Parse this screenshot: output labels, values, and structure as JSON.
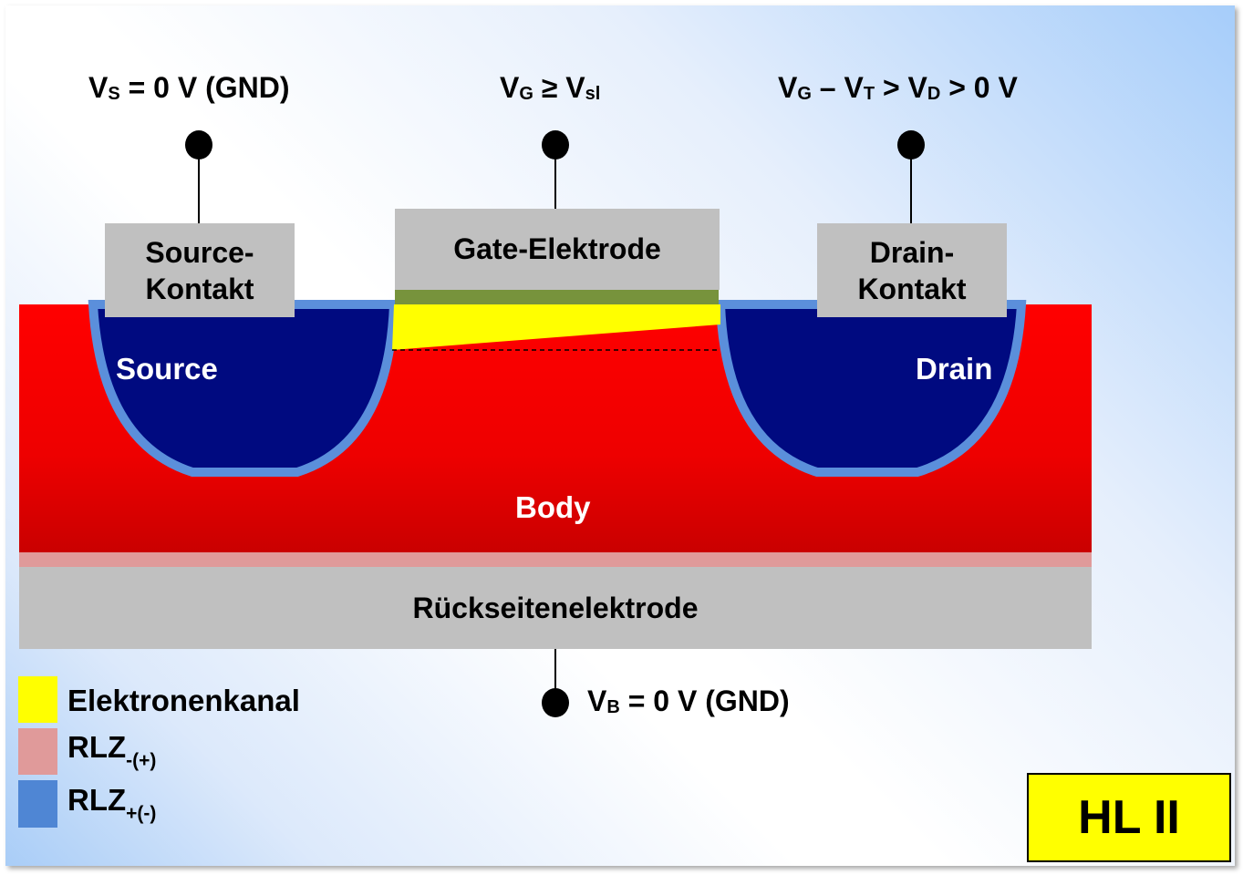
{
  "terminals": {
    "source_voltage": {
      "main": "V",
      "sub": "S",
      "rest": " = 0 V (GND)"
    },
    "gate_voltage": {
      "main": "V",
      "sub": "G",
      "mid": " ≥ V",
      "sub2": "sl"
    },
    "drain_voltage": {
      "p1": "V",
      "s1": "G",
      "p2": " – V",
      "s2": "T",
      "p3": " > V",
      "s3": "D",
      "p4": " > 0 V"
    },
    "bulk_voltage": {
      "main": "V",
      "sub": "B",
      "rest": " = 0 V (GND)"
    }
  },
  "contacts": {
    "source_line1": "Source-",
    "source_line2": "Kontakt",
    "gate": "Gate-Elektrode",
    "drain_line1": "Drain-",
    "drain_line2": "Kontakt",
    "back": "Rückseitenelektrode"
  },
  "regions": {
    "source": "Source",
    "drain": "Drain",
    "body": "Body"
  },
  "legend": [
    {
      "label": "Elektronenkanal",
      "sub": "",
      "color": "#ffff00"
    },
    {
      "label": "RLZ",
      "sub": "-(+)",
      "color": "#e09a9a"
    },
    {
      "label": "RLZ",
      "sub": "+(-)",
      "color": "#4f86d4"
    }
  ],
  "badge": "HL II",
  "colors": {
    "body": "#e00000",
    "doped_wells": "#000a80",
    "depletion_well": "#5b8fdb",
    "depletion_body": "#e09a9a",
    "channel": "#ffff00",
    "gate_oxide": "#77933c",
    "electrode": "#c0c0c0"
  }
}
